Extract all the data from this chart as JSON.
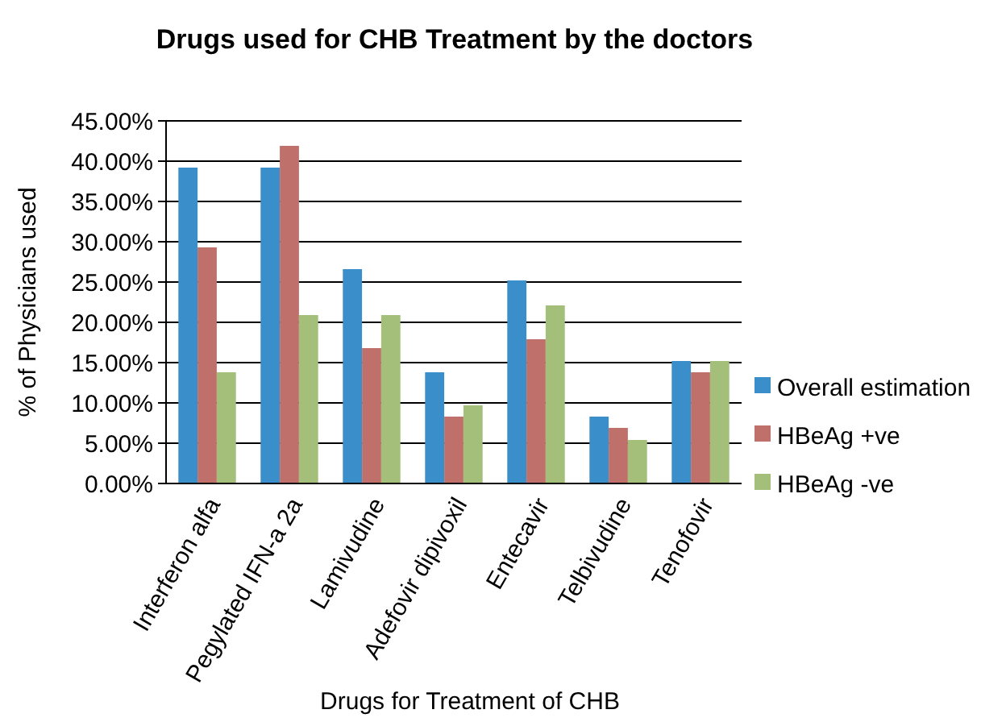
{
  "chart_data": {
    "type": "bar",
    "title": "Drugs used for CHB Treatment by the doctors",
    "xlabel": "Drugs for Treatment of CHB",
    "ylabel": "% of Physicians used",
    "categories": [
      "Interferon alfa",
      "Pegylated IFN-a 2a",
      "Lamivudine",
      "Adefovir dipivoxil",
      "Entecavir",
      "Telbivudine",
      "Tenofovir"
    ],
    "series": [
      {
        "name": "Overall estimation",
        "color": "#3a8fcb",
        "values": [
          39.2,
          39.2,
          26.6,
          13.8,
          25.2,
          8.3,
          15.2
        ]
      },
      {
        "name": "HBeAg +ve",
        "color": "#c0706a",
        "values": [
          29.3,
          41.9,
          16.8,
          8.3,
          17.9,
          6.9,
          13.8
        ]
      },
      {
        "name": "HBeAg -ve",
        "color": "#a3bf7a",
        "values": [
          13.8,
          20.9,
          20.9,
          9.7,
          22.1,
          5.4,
          15.2
        ]
      }
    ],
    "ylim": [
      0,
      45
    ],
    "yticks": [
      {
        "value": 0,
        "label": "0.00%"
      },
      {
        "value": 5,
        "label": "5.00%"
      },
      {
        "value": 10,
        "label": "10.00%"
      },
      {
        "value": 15,
        "label": "15.00%"
      },
      {
        "value": 20,
        "label": "20.00%"
      },
      {
        "value": 25,
        "label": "25.00%"
      },
      {
        "value": 30,
        "label": "30.00%"
      },
      {
        "value": 35,
        "label": "35.00%"
      },
      {
        "value": 40,
        "label": "40.00%"
      },
      {
        "value": 45,
        "label": "45.00%"
      }
    ],
    "grid": "y",
    "legend": "right"
  }
}
